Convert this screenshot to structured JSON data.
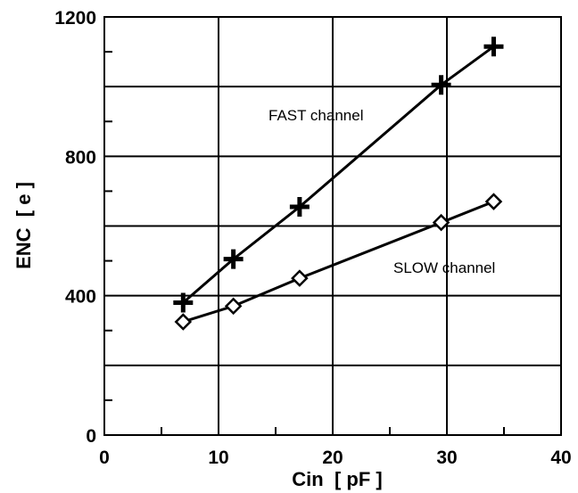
{
  "chart_data": {
    "type": "line",
    "title": "",
    "xlabel": "Cin  [ pF ]",
    "ylabel": "ENC  [ e ]",
    "xlim": [
      0,
      40
    ],
    "ylim": [
      0,
      1200
    ],
    "x_ticks": [
      0,
      10,
      20,
      30,
      40
    ],
    "x_tick_labels": [
      "0",
      "10",
      "20",
      "30",
      "40"
    ],
    "y_ticks": [
      0,
      400,
      800,
      1200
    ],
    "y_tick_labels": [
      "0",
      "400",
      "800",
      "1200"
    ],
    "grid": true,
    "series": [
      {
        "name": "FAST channel",
        "marker": "plus",
        "x": [
          6.9,
          11.3,
          17.1,
          29.5,
          34.1
        ],
        "y": [
          380,
          505,
          655,
          1005,
          1115
        ]
      },
      {
        "name": "SLOW channel",
        "marker": "diamond",
        "x": [
          6.9,
          11.3,
          17.1,
          29.5,
          34.1
        ],
        "y": [
          325,
          370,
          450,
          610,
          670
        ]
      }
    ]
  }
}
